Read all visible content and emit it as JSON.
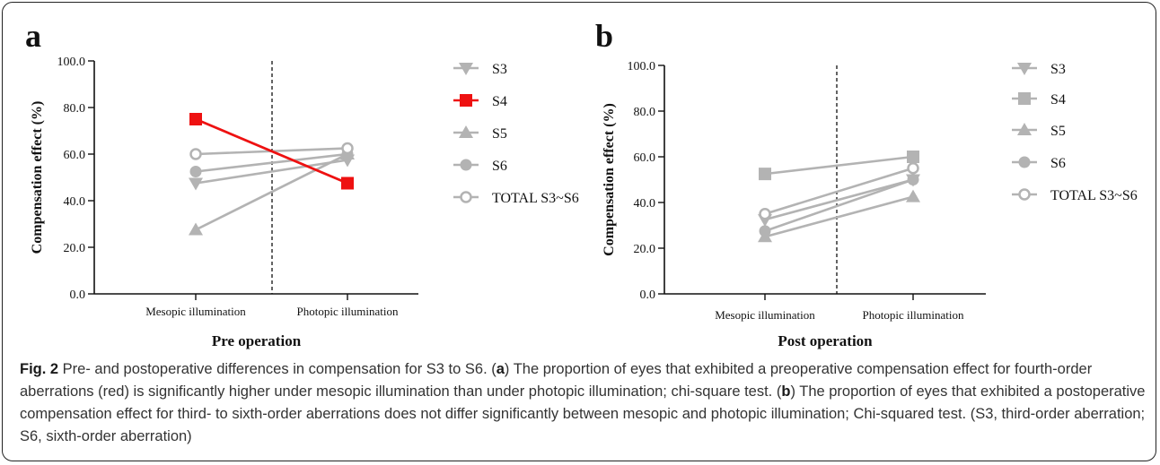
{
  "chart_data": [
    {
      "panel": "a",
      "type": "line",
      "categories": [
        "Mesopic illumination",
        "Photopic illumination"
      ],
      "xlabel": "Pre operation",
      "ylabel": "Compensation effect (%)",
      "ylim": [
        0,
        100
      ],
      "yticks": [
        "0.0",
        "20.0",
        "40.0",
        "60.0",
        "80.0",
        "100.0"
      ],
      "series": [
        {
          "name": "S3",
          "marker": "triangle-down",
          "color": "#b3b3b3",
          "values": [
            47.5,
            57.5
          ]
        },
        {
          "name": "S4",
          "marker": "square",
          "color": "#ee1111",
          "values": [
            75.0,
            47.5
          ]
        },
        {
          "name": "S5",
          "marker": "triangle-up",
          "color": "#b3b3b3",
          "values": [
            27.5,
            60.0
          ]
        },
        {
          "name": "S6",
          "marker": "circle",
          "color": "#b3b3b3",
          "values": [
            52.5,
            60.0
          ]
        },
        {
          "name": "TOTAL S3~S6",
          "marker": "circle-open",
          "color": "#b3b3b3",
          "values": [
            60.0,
            62.5
          ]
        }
      ]
    },
    {
      "panel": "b",
      "type": "line",
      "categories": [
        "Mesopic illumination",
        "Photopic illumination"
      ],
      "xlabel": "Post operation",
      "ylabel": "Compensation effect (%)",
      "ylim": [
        0,
        100
      ],
      "yticks": [
        "0.0",
        "20.0",
        "40.0",
        "60.0",
        "80.0",
        "100.0"
      ],
      "series": [
        {
          "name": "S3",
          "marker": "triangle-down",
          "color": "#b3b3b3",
          "values": [
            32.5,
            50.0
          ]
        },
        {
          "name": "S4",
          "marker": "square",
          "color": "#b3b3b3",
          "values": [
            52.5,
            60.0
          ]
        },
        {
          "name": "S5",
          "marker": "triangle-up",
          "color": "#b3b3b3",
          "values": [
            25.0,
            42.5
          ]
        },
        {
          "name": "S6",
          "marker": "circle",
          "color": "#b3b3b3",
          "values": [
            27.5,
            50.0
          ]
        },
        {
          "name": "TOTAL S3~S6",
          "marker": "circle-open",
          "color": "#b3b3b3",
          "values": [
            35.0,
            55.0
          ]
        }
      ]
    }
  ],
  "caption": {
    "label": "Fig. 2",
    "text1": " Pre- and postoperative differences in compensation for S3 to S6. (",
    "a": "a",
    "text2": ") The proportion of eyes that exhibited a preoperative compensation effect for fourth-order aberrations (red) is significantly higher under mesopic illumination than under photopic illumination; chi-square test. (",
    "b": "b",
    "text3": ") The proportion of eyes that exhibited a postoperative compensation effect for third- to sixth-order aberrations does not differ significantly between mesopic and photopic illumination; Chi-squared test. (S3, third-order aberration; S6, sixth-order aberration)"
  }
}
